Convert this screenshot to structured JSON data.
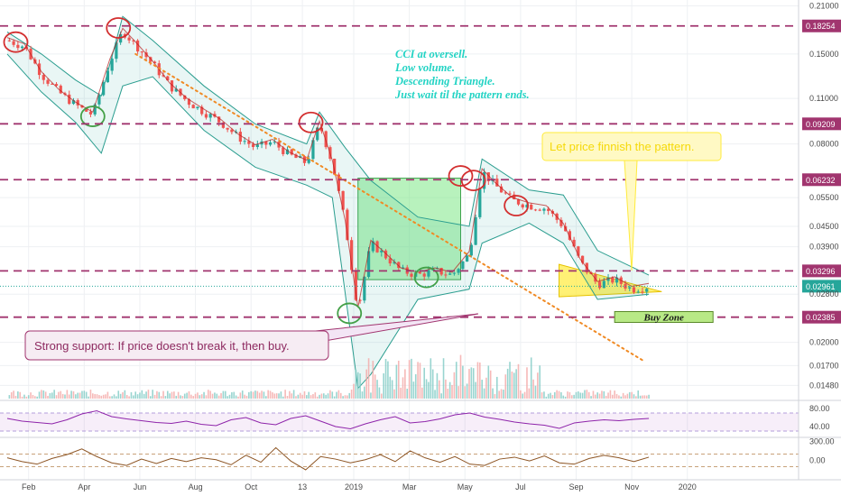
{
  "chart_data": {
    "type": "candlestick",
    "x_ticks": [
      "Feb",
      "Apr",
      "Jun",
      "Aug",
      "Oct",
      "13",
      "2019",
      "Mar",
      "May",
      "Jul",
      "Sep",
      "Nov",
      "2020"
    ],
    "price_axis": {
      "scale": "log",
      "ylim": [
        0.0135,
        0.212
      ],
      "ticks": [
        "0.21000",
        "0.15000",
        "0.11000",
        "0.08000",
        "0.05500",
        "0.04500",
        "0.03900",
        "0.02800",
        "0.02000",
        "0.01700",
        "0.01480"
      ]
    },
    "level_lines": [
      {
        "label": "0.18254",
        "value": 0.18254,
        "color": "#a1356f"
      },
      {
        "label": "0.09209",
        "value": 0.09209,
        "color": "#a1356f"
      },
      {
        "label": "0.06232",
        "value": 0.06232,
        "color": "#a1356f"
      },
      {
        "label": "0.03296",
        "value": 0.03296,
        "color": "#a1356f"
      },
      {
        "label": "0.02961",
        "value": 0.02961,
        "color": "#26a69a"
      },
      {
        "label": "0.02385",
        "value": 0.02385,
        "color": "#a1356f"
      }
    ],
    "price_series": [
      {
        "x": 0,
        "y": 0.165
      },
      {
        "x": 4,
        "y": 0.158
      },
      {
        "x": 8,
        "y": 0.13
      },
      {
        "x": 12,
        "y": 0.115
      },
      {
        "x": 16,
        "y": 0.105
      },
      {
        "x": 20,
        "y": 0.098
      },
      {
        "x": 24,
        "y": 0.142
      },
      {
        "x": 27,
        "y": 0.176
      },
      {
        "x": 30,
        "y": 0.16
      },
      {
        "x": 34,
        "y": 0.14
      },
      {
        "x": 38,
        "y": 0.12
      },
      {
        "x": 42,
        "y": 0.108
      },
      {
        "x": 46,
        "y": 0.1
      },
      {
        "x": 50,
        "y": 0.093
      },
      {
        "x": 54,
        "y": 0.084
      },
      {
        "x": 58,
        "y": 0.078
      },
      {
        "x": 62,
        "y": 0.081
      },
      {
        "x": 66,
        "y": 0.074
      },
      {
        "x": 70,
        "y": 0.07
      },
      {
        "x": 73,
        "y": 0.092
      },
      {
        "x": 76,
        "y": 0.07
      },
      {
        "x": 79,
        "y": 0.046
      },
      {
        "x": 82,
        "y": 0.025
      },
      {
        "x": 85,
        "y": 0.04
      },
      {
        "x": 88,
        "y": 0.037
      },
      {
        "x": 92,
        "y": 0.033
      },
      {
        "x": 96,
        "y": 0.032
      },
      {
        "x": 100,
        "y": 0.033
      },
      {
        "x": 104,
        "y": 0.032
      },
      {
        "x": 108,
        "y": 0.037
      },
      {
        "x": 111,
        "y": 0.066
      },
      {
        "x": 114,
        "y": 0.06
      },
      {
        "x": 118,
        "y": 0.054
      },
      {
        "x": 122,
        "y": 0.052
      },
      {
        "x": 126,
        "y": 0.051
      },
      {
        "x": 130,
        "y": 0.045
      },
      {
        "x": 134,
        "y": 0.035
      },
      {
        "x": 138,
        "y": 0.03
      },
      {
        "x": 142,
        "y": 0.031
      },
      {
        "x": 146,
        "y": 0.029
      },
      {
        "x": 150,
        "y": 0.0296
      }
    ],
    "x_range": [
      0,
      185
    ],
    "tick_positions": [
      5,
      18,
      31,
      44,
      57,
      69,
      81,
      94,
      107,
      120,
      133,
      146,
      159
    ],
    "bollinger_upper": [
      {
        "x": 0,
        "y": 0.175
      },
      {
        "x": 8,
        "y": 0.15
      },
      {
        "x": 16,
        "y": 0.125
      },
      {
        "x": 22,
        "y": 0.112
      },
      {
        "x": 27,
        "y": 0.195
      },
      {
        "x": 34,
        "y": 0.165
      },
      {
        "x": 46,
        "y": 0.12
      },
      {
        "x": 58,
        "y": 0.092
      },
      {
        "x": 70,
        "y": 0.08
      },
      {
        "x": 73,
        "y": 0.1
      },
      {
        "x": 79,
        "y": 0.078
      },
      {
        "x": 85,
        "y": 0.062
      },
      {
        "x": 96,
        "y": 0.048
      },
      {
        "x": 108,
        "y": 0.045
      },
      {
        "x": 111,
        "y": 0.072
      },
      {
        "x": 122,
        "y": 0.058
      },
      {
        "x": 130,
        "y": 0.056
      },
      {
        "x": 138,
        "y": 0.038
      },
      {
        "x": 150,
        "y": 0.032
      }
    ],
    "bollinger_lower": [
      {
        "x": 0,
        "y": 0.15
      },
      {
        "x": 8,
        "y": 0.115
      },
      {
        "x": 16,
        "y": 0.093
      },
      {
        "x": 22,
        "y": 0.075
      },
      {
        "x": 27,
        "y": 0.12
      },
      {
        "x": 34,
        "y": 0.128
      },
      {
        "x": 46,
        "y": 0.088
      },
      {
        "x": 58,
        "y": 0.068
      },
      {
        "x": 70,
        "y": 0.06
      },
      {
        "x": 76,
        "y": 0.055
      },
      {
        "x": 82,
        "y": 0.0145
      },
      {
        "x": 85,
        "y": 0.016
      },
      {
        "x": 96,
        "y": 0.027
      },
      {
        "x": 108,
        "y": 0.029
      },
      {
        "x": 111,
        "y": 0.04
      },
      {
        "x": 122,
        "y": 0.046
      },
      {
        "x": 130,
        "y": 0.04
      },
      {
        "x": 138,
        "y": 0.027
      },
      {
        "x": 150,
        "y": 0.028
      }
    ],
    "trendline": {
      "from": {
        "x": 30,
        "y": 0.15
      },
      "to": {
        "x": 149,
        "y": 0.0175
      },
      "color": "#f08a24"
    },
    "triangle": {
      "points": [
        {
          "x": 129,
          "y": 0.0345
        },
        {
          "x": 153,
          "y": 0.0285
        },
        {
          "x": 129,
          "y": 0.0275
        }
      ],
      "color": "#ffeb3b"
    },
    "rectangle_zone": {
      "x0": 82,
      "x1": 106,
      "y0": 0.031,
      "y1": 0.063,
      "color": "#7ee787"
    },
    "buy_zone": {
      "label": "Buy Zone",
      "x0": 142,
      "x1": 165,
      "y0": 0.0237,
      "y1": 0.0248
    },
    "highlight_circles": [
      {
        "x": 2,
        "y": 0.163,
        "color": "#d32f2f"
      },
      {
        "x": 26,
        "y": 0.18,
        "color": "#d32f2f"
      },
      {
        "x": 20,
        "y": 0.097,
        "color": "#43a047"
      },
      {
        "x": 71,
        "y": 0.093,
        "color": "#d32f2f"
      },
      {
        "x": 80,
        "y": 0.0245,
        "color": "#43a047"
      },
      {
        "x": 98,
        "y": 0.0315,
        "color": "#43a047"
      },
      {
        "x": 106,
        "y": 0.064,
        "color": "#d32f2f"
      },
      {
        "x": 109,
        "y": 0.062,
        "color": "#d32f2f"
      },
      {
        "x": 119,
        "y": 0.052,
        "color": "#d32f2f"
      }
    ],
    "annotations": {
      "note_lines": [
        "CCI at oversell.",
        "Low volume.",
        "Descending Triangle.",
        "Just wait til the pattern ends."
      ],
      "callout_pattern": "Let price finnish the pattern.",
      "callout_support": "Strong support: If price doesn't break it, then buy."
    },
    "volume_axis": {
      "visible": false
    },
    "rsi": {
      "ticks": [
        "80.00",
        "40.00"
      ],
      "ylim": [
        20,
        90
      ],
      "band": [
        30,
        70
      ],
      "values": [
        58,
        52,
        49,
        46,
        55,
        68,
        75,
        62,
        57,
        53,
        49,
        47,
        52,
        45,
        42,
        55,
        60,
        48,
        44,
        58,
        64,
        52,
        40,
        35,
        46,
        55,
        62,
        48,
        51,
        57,
        66,
        70,
        61,
        56,
        50,
        46,
        43,
        36,
        48,
        52,
        55,
        53,
        56,
        58
      ]
    },
    "cci": {
      "ticks": [
        "300.00",
        "0.00"
      ],
      "ylim": [
        -250,
        320
      ],
      "values": [
        40,
        -20,
        -60,
        30,
        90,
        180,
        60,
        -40,
        -80,
        20,
        -50,
        30,
        -20,
        40,
        10,
        -70,
        80,
        -30,
        200,
        -10,
        -150,
        60,
        20,
        -40,
        10,
        90,
        -20,
        150,
        40,
        -30,
        60,
        -60,
        -80,
        20,
        50,
        -10,
        70,
        -40,
        -60,
        30,
        80,
        40,
        -20,
        50
      ]
    },
    "grid": true,
    "legend": "none"
  }
}
